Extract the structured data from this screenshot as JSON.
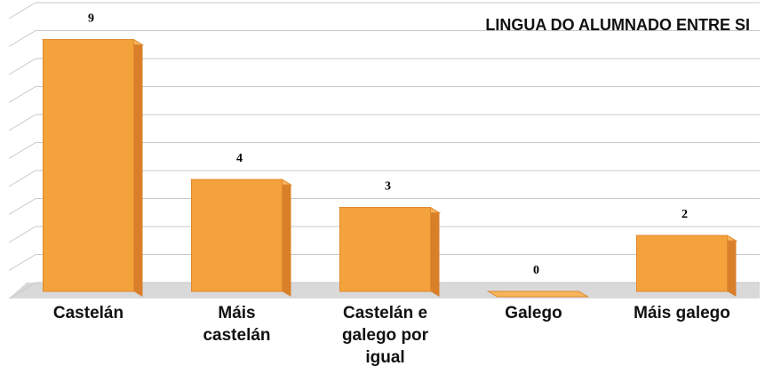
{
  "chart_data": {
    "type": "bar",
    "title": "LINGUA DO ALUMNADO ENTRE SI",
    "categories": [
      "Castelán",
      "Máis castelán",
      "Castelán e galego por igual",
      "Galego",
      "Máis galego"
    ],
    "values": [
      9,
      4,
      3,
      0,
      2
    ],
    "color": "#f4a23c",
    "ylim": [
      0,
      10
    ],
    "yticks": [
      0,
      1,
      2,
      3,
      4,
      5,
      6,
      7,
      8,
      9,
      10
    ],
    "grid": true
  }
}
